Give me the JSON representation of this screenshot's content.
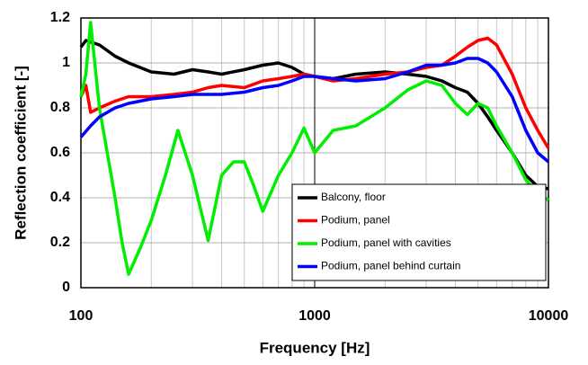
{
  "chart_data": {
    "type": "line",
    "xlabel": "Frequency [Hz]",
    "ylabel": "Reflection coefficient [-]",
    "xscale": "log",
    "xlim": [
      100,
      10000
    ],
    "xticks": [
      100,
      1000,
      10000
    ],
    "xminorticks": [
      200,
      300,
      400,
      500,
      600,
      700,
      800,
      900,
      2000,
      3000,
      4000,
      5000,
      6000,
      7000,
      8000,
      9000
    ],
    "ylim": [
      0,
      1.2
    ],
    "yticks": [
      0,
      0.2,
      0.4,
      0.6,
      0.8,
      1,
      1.2
    ],
    "grid": true,
    "legend": "lower right",
    "series": [
      {
        "name": "Balcony, floor",
        "color": "#000000",
        "x": [
          100,
          105,
          120,
          140,
          160,
          200,
          250,
          300,
          350,
          400,
          500,
          600,
          700,
          800,
          900,
          1000,
          1200,
          1500,
          2000,
          2500,
          3000,
          3500,
          4000,
          4500,
          5000,
          5500,
          6000,
          7000,
          8000,
          9000,
          10000
        ],
        "values": [
          1.07,
          1.1,
          1.08,
          1.03,
          1.0,
          0.96,
          0.95,
          0.97,
          0.96,
          0.95,
          0.97,
          0.99,
          1.0,
          0.98,
          0.95,
          0.94,
          0.93,
          0.95,
          0.96,
          0.95,
          0.94,
          0.92,
          0.89,
          0.87,
          0.82,
          0.76,
          0.7,
          0.6,
          0.5,
          0.45,
          0.44
        ]
      },
      {
        "name": "Podium, panel",
        "color": "#ff0000",
        "x": [
          100,
          105,
          110,
          120,
          140,
          160,
          200,
          250,
          300,
          350,
          400,
          500,
          600,
          700,
          800,
          900,
          1000,
          1200,
          1500,
          2000,
          2500,
          3000,
          3500,
          4000,
          4500,
          5000,
          5500,
          6000,
          7000,
          8000,
          9000,
          10000
        ],
        "values": [
          0.85,
          0.9,
          0.78,
          0.8,
          0.83,
          0.85,
          0.85,
          0.86,
          0.87,
          0.89,
          0.9,
          0.89,
          0.92,
          0.93,
          0.94,
          0.95,
          0.94,
          0.92,
          0.93,
          0.95,
          0.96,
          0.98,
          0.99,
          1.03,
          1.07,
          1.1,
          1.11,
          1.08,
          0.95,
          0.8,
          0.7,
          0.62
        ]
      },
      {
        "name": "Podium, panel with cavities",
        "color": "#00ee00",
        "x": [
          100,
          105,
          110,
          120,
          140,
          150,
          160,
          180,
          200,
          230,
          260,
          300,
          350,
          400,
          450,
          500,
          550,
          600,
          700,
          800,
          900,
          1000,
          1200,
          1500,
          2000,
          2500,
          3000,
          3500,
          4000,
          4500,
          5000,
          5500,
          6000,
          7000,
          8000,
          9000,
          10000
        ],
        "values": [
          0.85,
          0.95,
          1.18,
          0.8,
          0.4,
          0.2,
          0.06,
          0.18,
          0.3,
          0.5,
          0.7,
          0.5,
          0.21,
          0.5,
          0.56,
          0.56,
          0.45,
          0.34,
          0.5,
          0.6,
          0.71,
          0.6,
          0.7,
          0.72,
          0.8,
          0.88,
          0.92,
          0.9,
          0.82,
          0.77,
          0.82,
          0.8,
          0.72,
          0.6,
          0.48,
          0.42,
          0.39
        ]
      },
      {
        "name": "Podium, panel behind curtain",
        "color": "#0000ff",
        "x": [
          100,
          110,
          120,
          140,
          160,
          200,
          250,
          300,
          350,
          400,
          500,
          600,
          700,
          800,
          900,
          1000,
          1200,
          1500,
          2000,
          2500,
          3000,
          3500,
          4000,
          4500,
          5000,
          5500,
          6000,
          7000,
          8000,
          9000,
          10000
        ],
        "values": [
          0.67,
          0.72,
          0.76,
          0.8,
          0.82,
          0.84,
          0.85,
          0.86,
          0.86,
          0.86,
          0.87,
          0.89,
          0.9,
          0.92,
          0.94,
          0.94,
          0.93,
          0.92,
          0.93,
          0.96,
          0.99,
          0.99,
          1.0,
          1.02,
          1.02,
          1.0,
          0.96,
          0.85,
          0.7,
          0.6,
          0.56
        ]
      }
    ]
  }
}
